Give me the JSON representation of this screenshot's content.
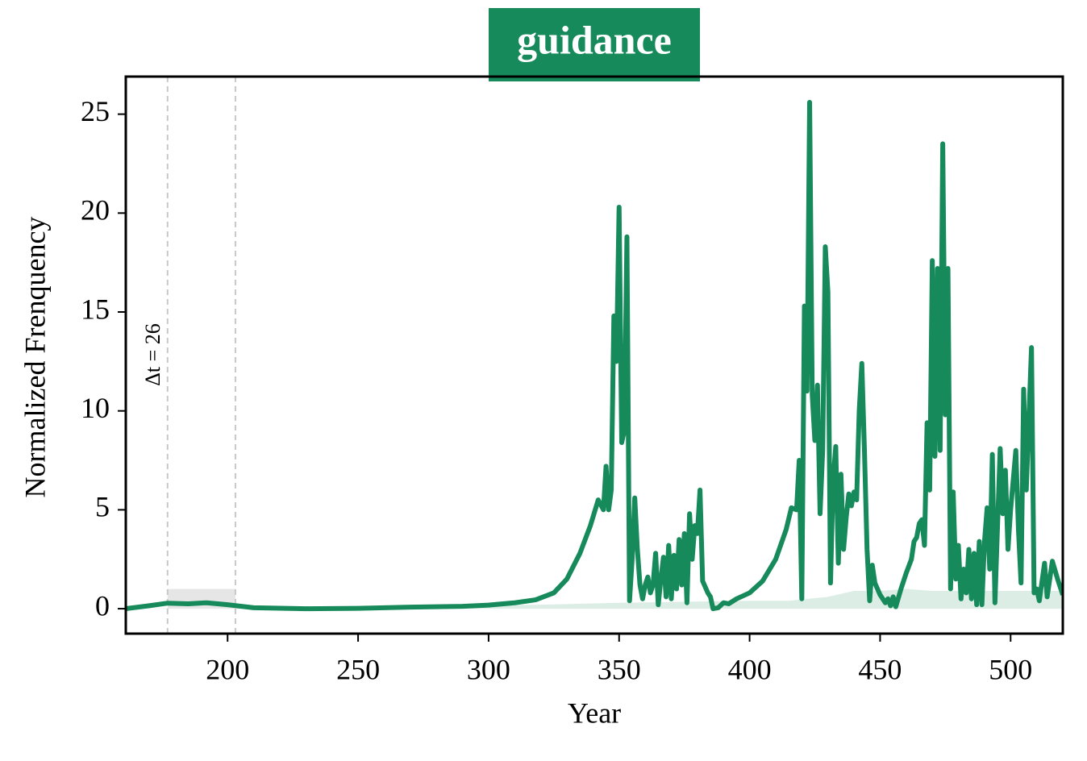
{
  "chart_data": {
    "type": "line",
    "title": "guidance",
    "title_background": "#168a5a",
    "xlabel": "Year",
    "ylabel": "Normalized Frenquency",
    "annotation": "Δt = 26",
    "span": [
      177,
      203
    ],
    "span_height": 1,
    "xlim": [
      161,
      520
    ],
    "ylim": [
      -1.26,
      26.9
    ],
    "xticks": [
      200,
      250,
      300,
      350,
      400,
      450,
      500
    ],
    "yticks": [
      0,
      5,
      10,
      15,
      20,
      25
    ],
    "line": {
      "color": "#168a5a",
      "x": [
        161,
        170,
        177,
        185,
        192,
        200,
        210,
        230,
        250,
        270,
        290,
        300,
        310,
        318,
        325,
        330,
        335,
        339,
        342,
        344,
        345,
        346,
        347,
        348,
        349,
        350,
        351,
        352,
        353,
        354,
        355,
        356,
        357,
        358,
        359,
        360,
        361,
        362,
        363,
        364,
        365,
        366,
        367,
        368,
        369,
        370,
        371,
        372,
        373,
        374,
        375,
        376,
        377,
        378,
        379,
        380,
        381,
        382,
        384,
        385,
        386,
        388,
        390,
        392,
        395,
        400,
        405,
        410,
        414,
        416,
        418,
        419,
        420,
        421,
        422,
        423,
        424,
        425,
        426,
        427,
        428,
        429,
        430,
        431,
        432,
        433,
        434,
        435,
        436,
        437,
        438,
        439,
        440,
        441,
        442,
        443,
        444,
        445,
        446,
        447,
        448,
        450,
        452,
        453,
        454,
        455,
        456,
        458,
        460,
        462,
        463,
        464,
        465,
        466,
        467,
        468,
        469,
        470,
        471,
        472,
        473,
        474,
        475,
        476,
        477,
        478,
        479,
        480,
        481,
        482,
        483,
        484,
        485,
        486,
        487,
        488,
        489,
        490,
        491,
        492,
        493,
        494,
        496,
        497,
        498,
        499,
        500,
        502,
        503,
        504,
        505,
        506,
        508,
        509,
        510,
        511,
        513,
        514,
        516,
        518,
        520
      ],
      "values": [
        0.0,
        0.15,
        0.28,
        0.25,
        0.3,
        0.2,
        0.05,
        0.0,
        0.02,
        0.08,
        0.12,
        0.18,
        0.3,
        0.45,
        0.8,
        1.5,
        2.8,
        4.2,
        5.5,
        5.0,
        7.2,
        5.0,
        6.0,
        14.8,
        12.5,
        20.3,
        8.4,
        9,
        18.8,
        0.4,
        2.5,
        5.6,
        3,
        1.2,
        0.5,
        1.2,
        1.6,
        0.8,
        1.2,
        2.8,
        0.2,
        1.5,
        2.6,
        0.6,
        3.2,
        0.5,
        2.7,
        1.0,
        3.5,
        1.2,
        3.8,
        0.3,
        4.8,
        2.5,
        4.2,
        3.8,
        6.0,
        1.4,
        0.8,
        0.6,
        0.0,
        0.05,
        0.3,
        0.25,
        0.5,
        0.8,
        1.4,
        2.5,
        4.0,
        5.1,
        5.0,
        7.5,
        0.5,
        15.3,
        11,
        25.6,
        10.8,
        8.5,
        11.3,
        4.8,
        8,
        18.3,
        16,
        1.3,
        6.5,
        8.2,
        2.3,
        6.8,
        3.0,
        4.6,
        5.8,
        5.2,
        5.9,
        5.5,
        10,
        12.4,
        8,
        3,
        0.4,
        2.2,
        1.3,
        0.7,
        0.3,
        0.5,
        0.15,
        0.6,
        0.1,
        1.0,
        1.8,
        2.5,
        3.4,
        3.6,
        4.3,
        4.5,
        3.2,
        9.4,
        6.0,
        17.6,
        7.7,
        17.2,
        8,
        23.5,
        9.8,
        17.2,
        1.0,
        5.9,
        1.5,
        3.2,
        0.5,
        2.0,
        0.8,
        3.0,
        0.5,
        2.8,
        0.2,
        3.4,
        0.2,
        3.4,
        5.1,
        2.0,
        7.8,
        0.3,
        8.1,
        4.8,
        7.0,
        3.0,
        5.0,
        8.0,
        4.0,
        1.3,
        11.1,
        6.0,
        13.2,
        0.8,
        1.0,
        0.4,
        2.3,
        0.6,
        2.4,
        1.5,
        0.7
      ]
    },
    "area": {
      "color": "#dcede5",
      "x": [
        161,
        320,
        350,
        400,
        415,
        430,
        440,
        450,
        460,
        470,
        490,
        520
      ],
      "values": [
        0,
        0.2,
        0.3,
        0.4,
        0.4,
        0.6,
        0.9,
        0.9,
        1.0,
        0.9,
        0.9,
        0.9
      ]
    }
  }
}
